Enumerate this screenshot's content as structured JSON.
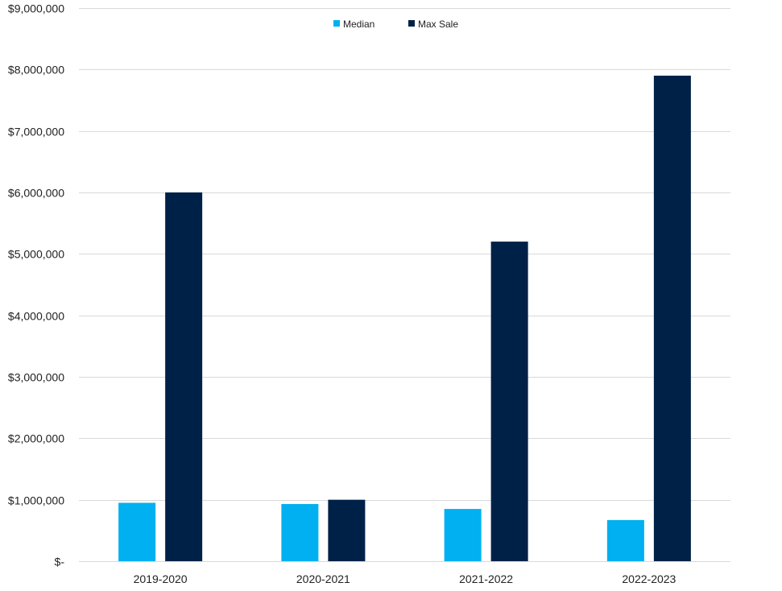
{
  "chart_data": {
    "type": "bar",
    "title": "",
    "xlabel": "",
    "ylabel": "",
    "categories": [
      "2019-2020",
      "2020-2021",
      "2021-2022",
      "2022-2023"
    ],
    "series": [
      {
        "name": "Median",
        "color": "#00b0f0",
        "values": [
          950000,
          930000,
          850000,
          670000
        ]
      },
      {
        "name": "Max Sale",
        "color": "#002147",
        "values": [
          6000000,
          1000000,
          5200000,
          7900000
        ]
      }
    ],
    "ylim": [
      0,
      9000000
    ],
    "yticks": [
      {
        "value": 0,
        "label": "$-"
      },
      {
        "value": 1000000,
        "label": "$1,000,000"
      },
      {
        "value": 2000000,
        "label": "$2,000,000"
      },
      {
        "value": 3000000,
        "label": "$3,000,000"
      },
      {
        "value": 4000000,
        "label": "$4,000,000"
      },
      {
        "value": 5000000,
        "label": "$5,000,000"
      },
      {
        "value": 6000000,
        "label": "$6,000,000"
      },
      {
        "value": 7000000,
        "label": "$7,000,000"
      },
      {
        "value": 8000000,
        "label": "$8,000,000"
      },
      {
        "value": 9000000,
        "label": "$9,000,000"
      }
    ],
    "grid": true,
    "legend_position": "top-center",
    "gridline_color": "#d9d9d9"
  }
}
